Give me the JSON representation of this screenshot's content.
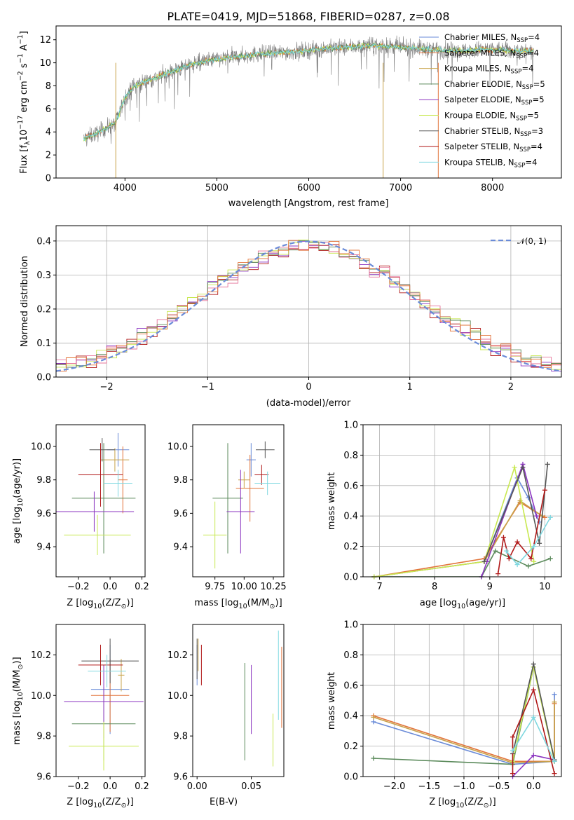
{
  "colors": {
    "Chabrier MILES": "#6a8bd8",
    "Salpeter MILES": "#e2743a",
    "Kroupa MILES": "#c8a24a",
    "Chabrier ELODIE": "#5b8a5b",
    "Salpeter ELODIE": "#8b35c0",
    "Kroupa ELODIE": "#c8e850",
    "Chabrier STELIB": "#555555",
    "Salpeter STELIB": "#b01818",
    "Kroupa STELIB": "#80d8e0",
    "norm": "#6a8bd8",
    "hist_pink": "#e6739a"
  },
  "chart_data": [
    {
      "id": "spectrum",
      "type": "line",
      "title": "PLATE=0419, MJD=51868, FIBERID=0287, z=0.08",
      "xlabel": "wavelength [Angstrom, rest frame]",
      "ylabel_parts": [
        "Flux [f",
        "λ",
        "10",
        "−17",
        " erg cm",
        "−2",
        " s",
        "−1",
        " A",
        "−1",
        "]"
      ],
      "xlim": [
        3250,
        8750
      ],
      "ylim": [
        0,
        13.2
      ],
      "xticks": [
        "4000",
        "5000",
        "6000",
        "7000",
        "8000"
      ],
      "xtick_values": [
        4000,
        5000,
        6000,
        7000,
        8000
      ],
      "yticks": [
        "0",
        "2",
        "4",
        "6",
        "8",
        "10",
        "12"
      ],
      "ytick_values": [
        0,
        2,
        4,
        6,
        8,
        10,
        12
      ],
      "continuum": [
        [
          3550,
          3.4
        ],
        [
          3700,
          3.9
        ],
        [
          3900,
          4.8
        ],
        [
          4000,
          7.0
        ],
        [
          4100,
          8.0
        ],
        [
          4300,
          8.6
        ],
        [
          4500,
          9.2
        ],
        [
          4700,
          9.8
        ],
        [
          4900,
          10.2
        ],
        [
          5100,
          10.4
        ],
        [
          5300,
          10.6
        ],
        [
          5500,
          10.8
        ],
        [
          5700,
          10.9
        ],
        [
          5900,
          11.0
        ],
        [
          6100,
          11.2
        ],
        [
          6300,
          11.3
        ],
        [
          6500,
          11.4
        ],
        [
          6700,
          11.5
        ],
        [
          6900,
          11.4
        ],
        [
          7100,
          11.3
        ],
        [
          7300,
          11.2
        ],
        [
          7500,
          11.1
        ],
        [
          7700,
          11.0
        ],
        [
          7900,
          11.2
        ],
        [
          8100,
          11.1
        ],
        [
          8300,
          11.0
        ],
        [
          8450,
          11.0
        ]
      ],
      "legend": [
        {
          "pre": "Chabrier MILES, N",
          "sub": "SSP",
          "post": "=4"
        },
        {
          "pre": "Salpeter MILES, N",
          "sub": "SSP",
          "post": "=4"
        },
        {
          "pre": "Kroupa MILES, N",
          "sub": "SSP",
          "post": "=4"
        },
        {
          "pre": "Chabrier ELODIE, N",
          "sub": "SSP",
          "post": "=5"
        },
        {
          "pre": "Salpeter ELODIE, N",
          "sub": "SSP",
          "post": "=5"
        },
        {
          "pre": "Kroupa ELODIE, N",
          "sub": "SSP",
          "post": "=5"
        },
        {
          "pre": "Chabrier STELIB, N",
          "sub": "SSP",
          "post": "=3"
        },
        {
          "pre": "Salpeter STELIB, N",
          "sub": "SSP",
          "post": "=4"
        },
        {
          "pre": "Kroupa STELIB, N",
          "sub": "SSP",
          "post": "=4"
        }
      ]
    },
    {
      "id": "residuals",
      "type": "line",
      "xlabel": "(data-model)/error",
      "ylabel": "Normed distribution",
      "xlim": [
        -2.5,
        2.5
      ],
      "ylim": [
        0,
        0.445
      ],
      "xticks": [
        "−2",
        "−1",
        "0",
        "1",
        "2"
      ],
      "xtick_values": [
        -2,
        -1,
        0,
        1,
        2
      ],
      "yticks": [
        "0.0",
        "0.1",
        "0.2",
        "0.3",
        "0.4"
      ],
      "ytick_values": [
        0,
        0.1,
        0.2,
        0.3,
        0.4
      ],
      "bin_width": 0.1,
      "legend": [
        {
          "pre": "𝒩(0, 1)",
          "sub": "",
          "post": ""
        }
      ]
    },
    {
      "id": "age-vs-Z",
      "type": "scatter",
      "xlabel_parts": [
        "Z [log",
        "10",
        "(Z/Z",
        "⊙",
        ")]"
      ],
      "ylabel_parts": [
        "age  [log",
        "10",
        "(age/yr)]"
      ],
      "xlim": [
        -0.34,
        0.22
      ],
      "ylim": [
        9.22,
        10.13
      ],
      "xticks": [
        "−0.2",
        "0.0",
        "0.2"
      ],
      "xtick_values": [
        -0.2,
        0,
        0.2
      ],
      "yticks": [
        "9.4",
        "9.6",
        "9.8",
        "10.0"
      ],
      "ytick_values": [
        9.4,
        9.6,
        9.8,
        10.0
      ],
      "points": [
        {
          "model": "Chabrier MILES",
          "x": 0.05,
          "xerr": 0.07,
          "y": 9.98,
          "yerr": 0.1
        },
        {
          "model": "Salpeter MILES",
          "x": 0.08,
          "xerr": 0.03,
          "y": 9.8,
          "yerr": 0.2
        },
        {
          "model": "Kroupa MILES",
          "x": 0.03,
          "xerr": 0.09,
          "y": 9.92,
          "yerr": 0.07
        },
        {
          "model": "Chabrier ELODIE",
          "x": -0.04,
          "xerr": 0.2,
          "y": 9.69,
          "yerr": 0.33
        },
        {
          "model": "Salpeter ELODIE",
          "x": -0.1,
          "xerr": 0.25,
          "y": 9.61,
          "yerr": 0.12
        },
        {
          "model": "Kroupa ELODIE",
          "x": -0.08,
          "xerr": 0.21,
          "y": 9.47,
          "yerr": 0.12
        },
        {
          "model": "Chabrier STELIB",
          "x": -0.05,
          "xerr": 0.08,
          "y": 9.98,
          "yerr": 0.07
        },
        {
          "model": "Salpeter STELIB",
          "x": -0.06,
          "xerr": 0.14,
          "y": 9.83,
          "yerr": 0.19
        },
        {
          "model": "Kroupa STELIB",
          "x": 0.05,
          "xerr": 0.09,
          "y": 9.78,
          "yerr": 0.08
        }
      ]
    },
    {
      "id": "age-vs-mass",
      "type": "scatter",
      "xlabel_parts": [
        "mass [log",
        "10",
        "(M/M",
        "⊙",
        ")]"
      ],
      "xlim": [
        9.56,
        10.34
      ],
      "ylim": [
        9.22,
        10.13
      ],
      "xticks": [
        "9.75",
        "10.00",
        "10.25"
      ],
      "xtick_values": [
        9.75,
        10.0,
        10.25
      ],
      "yticks": [
        "9.4",
        "9.6",
        "9.8",
        "10.0"
      ],
      "ytick_values": [
        9.4,
        9.6,
        9.8,
        10.0
      ],
      "points": [
        {
          "model": "Chabrier MILES",
          "x": 10.06,
          "xerr": 0.04,
          "y": 9.92,
          "yerr": 0.1
        },
        {
          "model": "Salpeter MILES",
          "x": 10.05,
          "xerr": 0.12,
          "y": 9.75,
          "yerr": 0.2
        },
        {
          "model": "Kroupa MILES",
          "x": 10.0,
          "xerr": 0.05,
          "y": 9.8,
          "yerr": 0.05
        },
        {
          "model": "Chabrier ELODIE",
          "x": 9.86,
          "xerr": 0.13,
          "y": 9.69,
          "yerr": 0.33
        },
        {
          "model": "Salpeter ELODIE",
          "x": 9.97,
          "xerr": 0.12,
          "y": 9.61,
          "yerr": 0.25
        },
        {
          "model": "Kroupa ELODIE",
          "x": 9.75,
          "xerr": 0.1,
          "y": 9.47,
          "yerr": 0.2
        },
        {
          "model": "Chabrier STELIB",
          "x": 10.18,
          "xerr": 0.08,
          "y": 9.98,
          "yerr": 0.05
        },
        {
          "model": "Salpeter STELIB",
          "x": 10.15,
          "xerr": 0.06,
          "y": 9.83,
          "yerr": 0.06
        },
        {
          "model": "Kroupa STELIB",
          "x": 10.2,
          "xerr": 0.11,
          "y": 9.78,
          "yerr": 0.07
        }
      ]
    },
    {
      "id": "mass-weight-vs-age",
      "type": "line",
      "xlabel_parts": [
        "age  [log",
        "10",
        "(age/yr)]"
      ],
      "ylabel": "mass weight",
      "xlim": [
        6.7,
        10.3
      ],
      "ylim": [
        0,
        1.0
      ],
      "xticks": [
        "7",
        "8",
        "9",
        "10"
      ],
      "xtick_values": [
        7,
        8,
        9,
        10
      ],
      "yticks": [
        "0.0",
        "0.2",
        "0.4",
        "0.6",
        "0.8",
        "1.0"
      ],
      "ytick_values": [
        0,
        0.2,
        0.4,
        0.6,
        0.8,
        1.0
      ],
      "series": [
        {
          "model": "Chabrier MILES",
          "x": [
            6.9,
            8.9,
            9.5,
            9.7,
            9.9
          ],
          "y": [
            0.0,
            0.1,
            0.65,
            0.52,
            0.36
          ]
        },
        {
          "model": "Salpeter MILES",
          "x": [
            6.9,
            8.9,
            9.55,
            10.0
          ],
          "y": [
            0.0,
            0.12,
            0.49,
            0.39
          ]
        },
        {
          "model": "Kroupa MILES",
          "x": [
            6.9,
            8.9,
            9.55,
            9.95
          ],
          "y": [
            0.0,
            0.1,
            0.5,
            0.4
          ]
        },
        {
          "model": "Chabrier ELODIE",
          "x": [
            6.9,
            8.85,
            9.1,
            9.7,
            10.1
          ],
          "y": [
            0.0,
            0.0,
            0.17,
            0.07,
            0.12
          ]
        },
        {
          "model": "Salpeter ELODIE",
          "x": [
            8.85,
            8.95,
            9.6,
            9.85
          ],
          "y": [
            0.0,
            0.1,
            0.74,
            0.4
          ]
        },
        {
          "model": "Kroupa ELODIE",
          "x": [
            6.9,
            8.9,
            9.45,
            9.8
          ],
          "y": [
            0.0,
            0.1,
            0.72,
            0.1
          ]
        },
        {
          "model": "Chabrier STELIB",
          "x": [
            8.9,
            9.6,
            9.9,
            10.05
          ],
          "y": [
            0.1,
            0.72,
            0.22,
            0.74
          ]
        },
        {
          "model": "Salpeter STELIB",
          "x": [
            9.15,
            9.25,
            9.35,
            9.5,
            9.75,
            10.0
          ],
          "y": [
            0.02,
            0.26,
            0.12,
            0.23,
            0.12,
            0.57
          ]
        },
        {
          "model": "Kroupa STELIB",
          "x": [
            9.3,
            9.5,
            9.8,
            10.1
          ],
          "y": [
            0.17,
            0.08,
            0.2,
            0.39
          ]
        }
      ]
    },
    {
      "id": "mass-vs-Z",
      "type": "scatter",
      "xlabel_parts": [
        "Z [log",
        "10",
        "(Z/Z",
        "⊙",
        ")]"
      ],
      "ylabel_parts": [
        "mass [log",
        "10",
        "(M/M",
        "⊙",
        ")]"
      ],
      "xlim": [
        -0.34,
        0.22
      ],
      "ylim": [
        9.6,
        10.35
      ],
      "xticks": [
        "−0.2",
        "0.0",
        "0.2"
      ],
      "xtick_values": [
        -0.2,
        0,
        0.2
      ],
      "yticks": [
        "9.6",
        "9.8",
        "10.0",
        "10.2"
      ],
      "ytick_values": [
        9.6,
        9.8,
        10.0,
        10.2
      ],
      "points": [
        {
          "model": "Chabrier MILES",
          "x": 0.0,
          "xerr": 0.12,
          "y": 10.03,
          "yerr": 0.22
        },
        {
          "model": "Salpeter MILES",
          "x": 0.0,
          "xerr": 0.12,
          "y": 10.0,
          "yerr": 0.18
        },
        {
          "model": "Kroupa MILES",
          "x": 0.07,
          "xerr": 0.02,
          "y": 10.1,
          "yerr": 0.08
        },
        {
          "model": "Chabrier ELODIE",
          "x": -0.04,
          "xerr": 0.2,
          "y": 9.86,
          "yerr": 0.18
        },
        {
          "model": "Salpeter ELODIE",
          "x": -0.04,
          "xerr": 0.25,
          "y": 9.97,
          "yerr": 0.18
        },
        {
          "model": "Kroupa ELODIE",
          "x": -0.04,
          "xerr": 0.22,
          "y": 9.75,
          "yerr": 0.12
        },
        {
          "model": "Chabrier STELIB",
          "x": 0.0,
          "xerr": 0.18,
          "y": 10.17,
          "yerr": 0.11
        },
        {
          "model": "Salpeter STELIB",
          "x": -0.06,
          "xerr": 0.14,
          "y": 10.15,
          "yerr": 0.1
        },
        {
          "model": "Kroupa STELIB",
          "x": -0.02,
          "xerr": 0.12,
          "y": 10.12,
          "yerr": 0.08
        }
      ]
    },
    {
      "id": "mass-vs-ebv",
      "type": "scatter",
      "xlabel": "E(B-V)",
      "xlim": [
        -0.004,
        0.08
      ],
      "ylim": [
        9.6,
        10.35
      ],
      "xticks": [
        "0.00",
        "0.05"
      ],
      "xtick_values": [
        0,
        0.05
      ],
      "yticks": [
        "9.6",
        "9.8",
        "10.0",
        "10.2"
      ],
      "ytick_values": [
        9.6,
        9.8,
        10.0,
        10.2
      ],
      "points": [
        {
          "model": "Chabrier MILES",
          "x": 0.0,
          "xerr": 0,
          "y": 10.15,
          "yerr": 0.1
        },
        {
          "model": "Salpeter MILES",
          "x": 0.078,
          "xerr": 0,
          "y": 10.04,
          "yerr": 0.2
        },
        {
          "model": "Kroupa MILES",
          "x": 0.001,
          "xerr": 0,
          "y": 10.2,
          "yerr": 0.08
        },
        {
          "model": "Chabrier ELODIE",
          "x": 0.044,
          "xerr": 0,
          "y": 9.92,
          "yerr": 0.24
        },
        {
          "model": "Salpeter ELODIE",
          "x": 0.05,
          "xerr": 0,
          "y": 9.98,
          "yerr": 0.17
        },
        {
          "model": "Kroupa ELODIE",
          "x": 0.07,
          "xerr": 0,
          "y": 9.78,
          "yerr": 0.13
        },
        {
          "model": "Chabrier STELIB",
          "x": 0.0,
          "xerr": 0,
          "y": 10.18,
          "yerr": 0.1
        },
        {
          "model": "Salpeter STELIB",
          "x": 0.004,
          "xerr": 0,
          "y": 10.15,
          "yerr": 0.1
        },
        {
          "model": "Kroupa STELIB",
          "x": 0.075,
          "xerr": 0,
          "y": 10.1,
          "yerr": 0.22
        }
      ]
    },
    {
      "id": "mass-weight-vs-Z",
      "type": "line",
      "xlabel_parts": [
        "Z [log",
        "10",
        "(Z/Z",
        "⊙",
        ")]"
      ],
      "ylabel": "mass weight",
      "xlim": [
        -2.45,
        0.4
      ],
      "ylim": [
        0,
        1.0
      ],
      "xticks": [
        "−2.0",
        "−1.5",
        "−1.0",
        "−0.5",
        "0.0"
      ],
      "xtick_values": [
        -2.0,
        -1.5,
        -1.0,
        -0.5,
        0.0
      ],
      "yticks": [
        "0.0",
        "0.2",
        "0.4",
        "0.6",
        "0.8",
        "1.0"
      ],
      "ytick_values": [
        0,
        0.2,
        0.4,
        0.6,
        0.8,
        1.0
      ],
      "series": [
        {
          "model": "Chabrier MILES",
          "x": [
            -2.3,
            -0.3,
            0.3,
            0.3
          ],
          "y": [
            0.36,
            0.08,
            0.1,
            0.54
          ]
        },
        {
          "model": "Salpeter MILES",
          "x": [
            -2.3,
            -0.3,
            0.3,
            0.3
          ],
          "y": [
            0.4,
            0.1,
            0.1,
            0.48
          ]
        },
        {
          "model": "Kroupa MILES",
          "x": [
            -2.3,
            -0.3,
            0.3,
            0.3
          ],
          "y": [
            0.39,
            0.09,
            0.1,
            0.49
          ]
        },
        {
          "model": "Chabrier ELODIE",
          "x": [
            -2.3,
            -0.3,
            0.0
          ],
          "y": [
            0.12,
            0.08,
            0.72
          ]
        },
        {
          "model": "Salpeter ELODIE",
          "x": [
            -0.3,
            0.0,
            0.3
          ],
          "y": [
            0.0,
            0.14,
            0.11
          ]
        },
        {
          "model": "Kroupa ELODIE",
          "x": [
            -0.3,
            0.0,
            0.3
          ],
          "y": [
            0.1,
            0.72,
            0.1
          ]
        },
        {
          "model": "Chabrier STELIB",
          "x": [
            -0.3,
            0.0,
            0.3
          ],
          "y": [
            0.15,
            0.74,
            0.11
          ]
        },
        {
          "model": "Salpeter STELIB",
          "x": [
            -0.3,
            -0.3,
            0.0,
            0.3
          ],
          "y": [
            0.02,
            0.26,
            0.57,
            0.02
          ]
        },
        {
          "model": "Kroupa STELIB",
          "x": [
            -0.3,
            0.0,
            0.3
          ],
          "y": [
            0.17,
            0.39,
            0.1
          ]
        }
      ]
    }
  ]
}
